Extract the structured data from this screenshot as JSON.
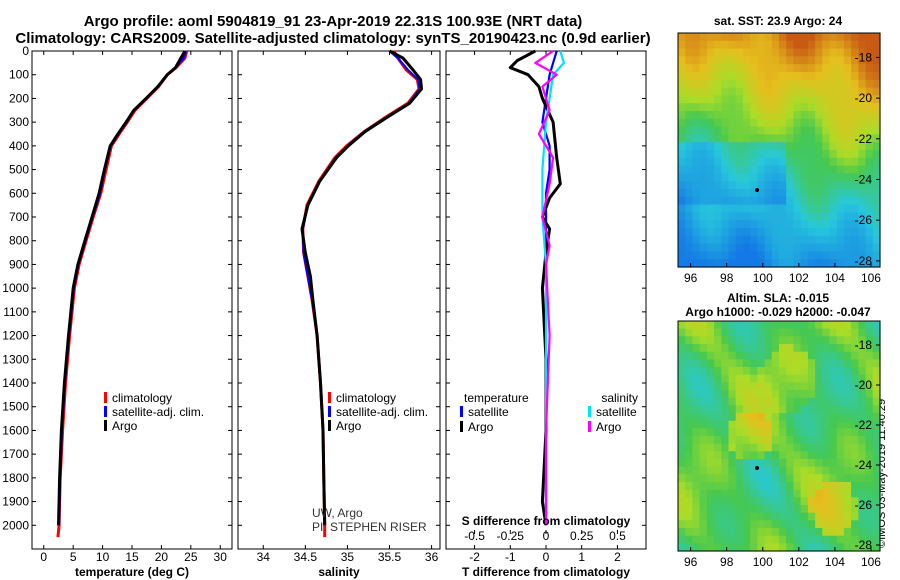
{
  "header": {
    "line1": "Argo profile: aoml 5904819_91 23-Apr-2019 22.31S 100.93E (NRT data)",
    "line2": "Climatology: CARS2009. Satellite-adjusted climatology: synTS_20190423.nc (0.9d earlier)"
  },
  "credit": {
    "line1": "UW, Argo",
    "line2": "PI: STEPHEN RISER"
  },
  "stamp": "©IMOS 03-May-2019 11:40:29",
  "colors": {
    "climatology": "#ff0000",
    "satellite": "#0000ff",
    "argo": "#000000",
    "sat_salinity": "#00e0ff",
    "argo_salinity": "#ff00ff"
  },
  "chart_data": [
    {
      "type": "line",
      "id": "temperature",
      "xlabel": "temperature (deg C)",
      "ylabel": "",
      "xlim": [
        -2,
        32
      ],
      "ylim": [
        2100,
        0
      ],
      "xticks": [
        0,
        5,
        10,
        15,
        20,
        25,
        30
      ],
      "yticks": [
        0,
        100,
        200,
        300,
        400,
        500,
        600,
        700,
        800,
        900,
        1000,
        1100,
        1200,
        1300,
        1400,
        1500,
        1600,
        1700,
        1800,
        1900,
        2000
      ],
      "legend": [
        "climatology",
        "satellite-adj. clim.",
        "Argo"
      ],
      "series": [
        {
          "name": "climatology",
          "color": "climatology",
          "x": [
            24.3,
            24.0,
            22.5,
            21.0,
            19.5,
            17.5,
            15.5,
            14.2,
            12.8,
            11.5,
            10.6,
            9.7,
            8.4,
            7.2,
            6.0,
            5.2,
            4.4,
            3.7,
            3.2,
            2.8,
            2.6,
            2.4
          ],
          "y": [
            0,
            30,
            70,
            100,
            150,
            200,
            250,
            300,
            350,
            400,
            500,
            600,
            700,
            800,
            900,
            1000,
            1200,
            1400,
            1600,
            1800,
            2000,
            2050
          ]
        },
        {
          "name": "satellite-adj. clim.",
          "color": "satellite",
          "x": [
            24.2,
            23.8,
            22.4,
            21.0,
            19.4,
            17.5,
            15.3,
            14.1,
            12.7,
            11.4,
            10.4,
            9.6,
            8.3,
            7.1,
            5.9,
            5.1,
            4.3,
            3.6,
            3.1,
            2.8,
            2.6
          ],
          "y": [
            0,
            30,
            70,
            100,
            150,
            200,
            250,
            300,
            350,
            400,
            500,
            600,
            700,
            800,
            900,
            1000,
            1200,
            1400,
            1600,
            1800,
            2000
          ]
        },
        {
          "name": "Argo",
          "color": "argo",
          "x": [
            24.0,
            23.3,
            22.4,
            21.0,
            19.4,
            17.4,
            15.3,
            14.0,
            12.6,
            11.3,
            10.3,
            9.4,
            8.2,
            7.0,
            5.8,
            5.0,
            4.2,
            3.5,
            3.0,
            2.7,
            2.5
          ],
          "y": [
            0,
            30,
            70,
            100,
            150,
            200,
            250,
            300,
            350,
            400,
            500,
            600,
            700,
            800,
            900,
            1000,
            1200,
            1400,
            1600,
            1800,
            2000
          ]
        }
      ]
    },
    {
      "type": "line",
      "id": "salinity",
      "xlabel": "salinity",
      "ylabel": "",
      "xlim": [
        33.7,
        36.1
      ],
      "ylim": [
        2100,
        0
      ],
      "xticks": [
        34,
        34.5,
        35,
        35.5,
        36
      ],
      "legend": [
        "climatology",
        "satellite-adj. clim.",
        "Argo"
      ],
      "series": [
        {
          "name": "climatology",
          "color": "climatology",
          "x": [
            35.55,
            35.6,
            35.7,
            35.83,
            35.85,
            35.72,
            35.45,
            35.2,
            34.99,
            34.85,
            34.66,
            34.52,
            34.47,
            34.48,
            34.53,
            34.58,
            34.64,
            34.68,
            34.71,
            34.72,
            34.73,
            34.73
          ],
          "y": [
            0,
            30,
            80,
            120,
            160,
            220,
            280,
            340,
            400,
            450,
            550,
            650,
            750,
            850,
            950,
            1050,
            1200,
            1400,
            1600,
            1800,
            2000,
            2050
          ]
        },
        {
          "name": "satellite-adj. clim.",
          "color": "satellite",
          "x": [
            35.5,
            35.6,
            35.72,
            35.84,
            35.86,
            35.73,
            35.46,
            35.2,
            35.0,
            34.86,
            34.67,
            34.53,
            34.47,
            34.48,
            34.53,
            34.58,
            34.64,
            34.68,
            34.71,
            34.72,
            34.73
          ],
          "y": [
            0,
            30,
            80,
            120,
            160,
            220,
            280,
            340,
            400,
            450,
            550,
            650,
            750,
            850,
            950,
            1050,
            1200,
            1400,
            1600,
            1800,
            2000
          ]
        },
        {
          "name": "Argo",
          "color": "argo",
          "x": [
            35.5,
            35.66,
            35.78,
            35.87,
            35.88,
            35.74,
            35.47,
            35.21,
            35.01,
            34.87,
            34.67,
            34.53,
            34.46,
            34.5,
            34.56,
            34.59,
            34.64,
            34.68,
            34.71,
            34.72,
            34.73
          ],
          "y": [
            0,
            30,
            80,
            120,
            160,
            220,
            280,
            340,
            400,
            450,
            550,
            650,
            750,
            850,
            950,
            1050,
            1200,
            1400,
            1600,
            1800,
            2000
          ]
        }
      ]
    },
    {
      "type": "line",
      "id": "difference",
      "xlabel": "T difference from climatology",
      "xlabel2": "S difference from climatology",
      "xlim": [
        -2.8,
        2.8
      ],
      "ylim": [
        2100,
        0
      ],
      "xticks": [
        -2,
        -1,
        0,
        1,
        2
      ],
      "sticks_labels": [
        "-0.5",
        "-0.25",
        "0",
        "0.25",
        "0.5"
      ],
      "sticks_values": [
        -2,
        -1,
        0,
        1,
        2
      ],
      "legend_left_title": "temperature",
      "legend_right_title": "salinity",
      "legend_items": [
        "satellite",
        "Argo",
        "satellite",
        "Argo"
      ],
      "series": [
        {
          "name": "temperature satellite",
          "color": "satellite",
          "x": [
            0.3,
            0.2,
            0.1,
            0.0,
            -0.1,
            0.1,
            0.1,
            0.0,
            0.0,
            0.0,
            0.0,
            0.0,
            0.0,
            0.0
          ],
          "y": [
            0,
            50,
            100,
            200,
            300,
            400,
            500,
            600,
            700,
            800,
            1000,
            1400,
            1800,
            2000
          ]
        },
        {
          "name": "temperature Argo",
          "color": "argo",
          "x": [
            -0.3,
            -0.8,
            -1.0,
            -0.5,
            -0.2,
            -0.1,
            0.2,
            0.3,
            0.4,
            0.1,
            -0.1,
            0.1,
            0.0,
            -0.1,
            0.0,
            0.0,
            -0.1,
            0.0
          ],
          "y": [
            0,
            40,
            70,
            100,
            150,
            200,
            300,
            450,
            560,
            620,
            700,
            750,
            850,
            1000,
            1300,
            1600,
            1900,
            2000
          ]
        },
        {
          "name": "salinity satellite",
          "color": "sat_salinity",
          "x": [
            0.4,
            0.5,
            0.2,
            0.1,
            0.0,
            -0.1,
            -0.1,
            0.0,
            0.0,
            0.0,
            0.0,
            0.0
          ],
          "y": [
            0,
            50,
            100,
            200,
            300,
            500,
            700,
            900,
            1200,
            1500,
            1800,
            2000
          ]
        },
        {
          "name": "salinity Argo",
          "color": "argo_salinity",
          "x": [
            0.2,
            -0.3,
            0.3,
            -0.1,
            0.1,
            -0.2,
            0.2,
            0.1,
            -0.1,
            0.1,
            0.0,
            0.1,
            0.0,
            0.0
          ],
          "y": [
            0,
            50,
            100,
            150,
            250,
            350,
            450,
            560,
            700,
            820,
            900,
            1200,
            1600,
            2000
          ]
        }
      ]
    },
    {
      "type": "heatmap",
      "id": "sst_map",
      "title": "sat. SST: 23.9 Argo: 24",
      "xlim": [
        95.3,
        106.5
      ],
      "ylim": [
        -28.3,
        -16.8
      ],
      "xticks": [
        96,
        98,
        100,
        102,
        104,
        106
      ],
      "yticks": [
        -18,
        -20,
        -22,
        -24,
        -26,
        -28
      ]
    },
    {
      "type": "heatmap",
      "id": "sla_map",
      "title": "Altim. SLA: -0.015",
      "subtitle": "Argo h1000: -0.029 h2000: -0.047",
      "xlim": [
        95.3,
        106.5
      ],
      "ylim": [
        -28.3,
        -16.8
      ],
      "xticks": [
        96,
        98,
        100,
        102,
        104,
        106
      ],
      "yticks": [
        -18,
        -20,
        -22,
        -24,
        -26,
        -28
      ]
    }
  ]
}
